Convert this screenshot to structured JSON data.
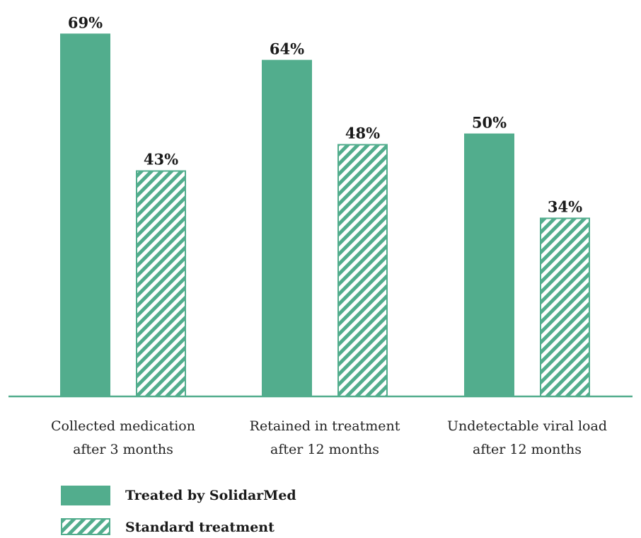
{
  "chart_data": {
    "type": "bar",
    "categories": [
      [
        "Collected medication",
        "after 3 months"
      ],
      [
        "Retained in treatment",
        "after 12 months"
      ],
      [
        "Undetectable viral load",
        "after 12 months"
      ]
    ],
    "series": [
      {
        "name": "Treated by SolidarMed",
        "values": [
          69,
          64,
          50
        ],
        "labels": [
          "69%",
          "64%",
          "50%"
        ],
        "color": "#52ad8d",
        "pattern": "solid"
      },
      {
        "name": "Standard treatment",
        "values": [
          43,
          48,
          34
        ],
        "labels": [
          "43%",
          "48%",
          "34%"
        ],
        "color": "#52ad8d",
        "pattern": "hatched"
      }
    ],
    "ylim": [
      0,
      70
    ],
    "grid": false,
    "legend_position": "bottom-left",
    "title": "",
    "xlabel": "",
    "ylabel": ""
  }
}
